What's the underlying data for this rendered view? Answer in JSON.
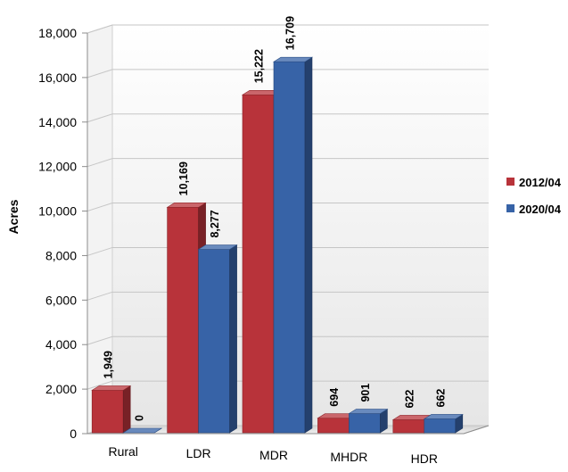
{
  "chart_data": {
    "type": "bar",
    "categories": [
      "Rural",
      "LDR",
      "MDR",
      "MHDR",
      "HDR"
    ],
    "series": [
      {
        "name": "2012/04",
        "values": [
          1949,
          10169,
          15222,
          694,
          622
        ],
        "labels": [
          "1,949",
          "10,169",
          "15,222",
          "694",
          "622"
        ],
        "color": "#b8333a"
      },
      {
        "name": "2020/04",
        "values": [
          0,
          8277,
          16709,
          901,
          662
        ],
        "labels": [
          "0",
          "8,277",
          "16,709",
          "901",
          "662"
        ],
        "color": "#3763a7"
      }
    ],
    "ylabel": "Acres",
    "ylim": [
      0,
      18000
    ],
    "yticks": [
      0,
      2000,
      4000,
      6000,
      8000,
      10000,
      12000,
      14000,
      16000,
      18000
    ],
    "ytick_labels": [
      "0",
      "2,000",
      "4,000",
      "6,000",
      "8,000",
      "10,000",
      "12,000",
      "14,000",
      "16,000",
      "18,000"
    ],
    "grid": true,
    "legend_position": "right",
    "style": "3d-clustered-column"
  }
}
